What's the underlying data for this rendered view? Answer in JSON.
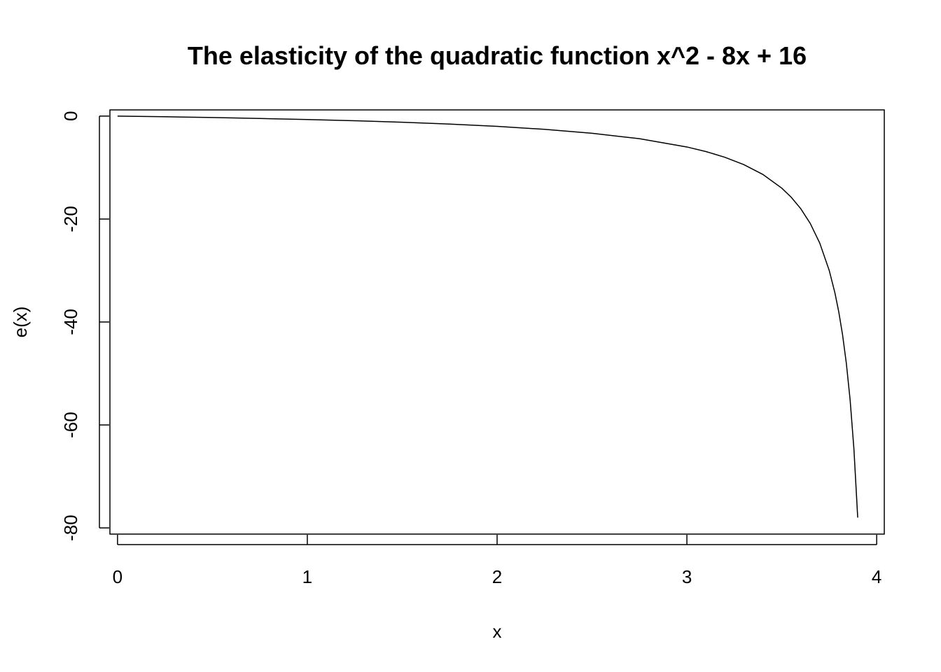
{
  "chart_data": {
    "type": "line",
    "title": "The elasticity of the quadratic function x^2 - 8x + 16",
    "xlabel": "x",
    "ylabel": "e(x)",
    "xlim": [
      -0.04,
      4.04
    ],
    "ylim": [
      -81.2,
      1.2
    ],
    "x_ticks": [
      0,
      1,
      2,
      3,
      4
    ],
    "y_ticks": [
      0,
      -20,
      -40,
      -60,
      -80
    ],
    "x_tick_labels": [
      "0",
      "1",
      "2",
      "3",
      "4"
    ],
    "y_tick_labels": [
      "0",
      "-20",
      "-40",
      "-60",
      "-80"
    ],
    "grid": false,
    "legend": "none",
    "line_color": "#000000",
    "series": [
      {
        "values": [
          {
            "x": 0.0,
            "y": 0.0
          },
          {
            "x": 0.25,
            "y": -0.133
          },
          {
            "x": 0.5,
            "y": -0.286
          },
          {
            "x": 0.75,
            "y": -0.462
          },
          {
            "x": 1.0,
            "y": -0.667
          },
          {
            "x": 1.25,
            "y": -0.909
          },
          {
            "x": 1.5,
            "y": -1.2
          },
          {
            "x": 1.75,
            "y": -1.556
          },
          {
            "x": 2.0,
            "y": -2.0
          },
          {
            "x": 2.25,
            "y": -2.571
          },
          {
            "x": 2.5,
            "y": -3.333
          },
          {
            "x": 2.75,
            "y": -4.4
          },
          {
            "x": 3.0,
            "y": -6.0
          },
          {
            "x": 3.1,
            "y": -6.889
          },
          {
            "x": 3.2,
            "y": -8.0
          },
          {
            "x": 3.3,
            "y": -9.429
          },
          {
            "x": 3.4,
            "y": -11.333
          },
          {
            "x": 3.5,
            "y": -14.0
          },
          {
            "x": 3.55,
            "y": -15.778
          },
          {
            "x": 3.6,
            "y": -18.0
          },
          {
            "x": 3.65,
            "y": -20.857
          },
          {
            "x": 3.7,
            "y": -24.667
          },
          {
            "x": 3.75,
            "y": -30.0
          },
          {
            "x": 3.78,
            "y": -34.364
          },
          {
            "x": 3.8,
            "y": -38.0
          },
          {
            "x": 3.82,
            "y": -42.444
          },
          {
            "x": 3.84,
            "y": -48.0
          },
          {
            "x": 3.86,
            "y": -55.143
          },
          {
            "x": 3.88,
            "y": -64.667
          },
          {
            "x": 3.9,
            "y": -78.0
          }
        ]
      }
    ]
  }
}
